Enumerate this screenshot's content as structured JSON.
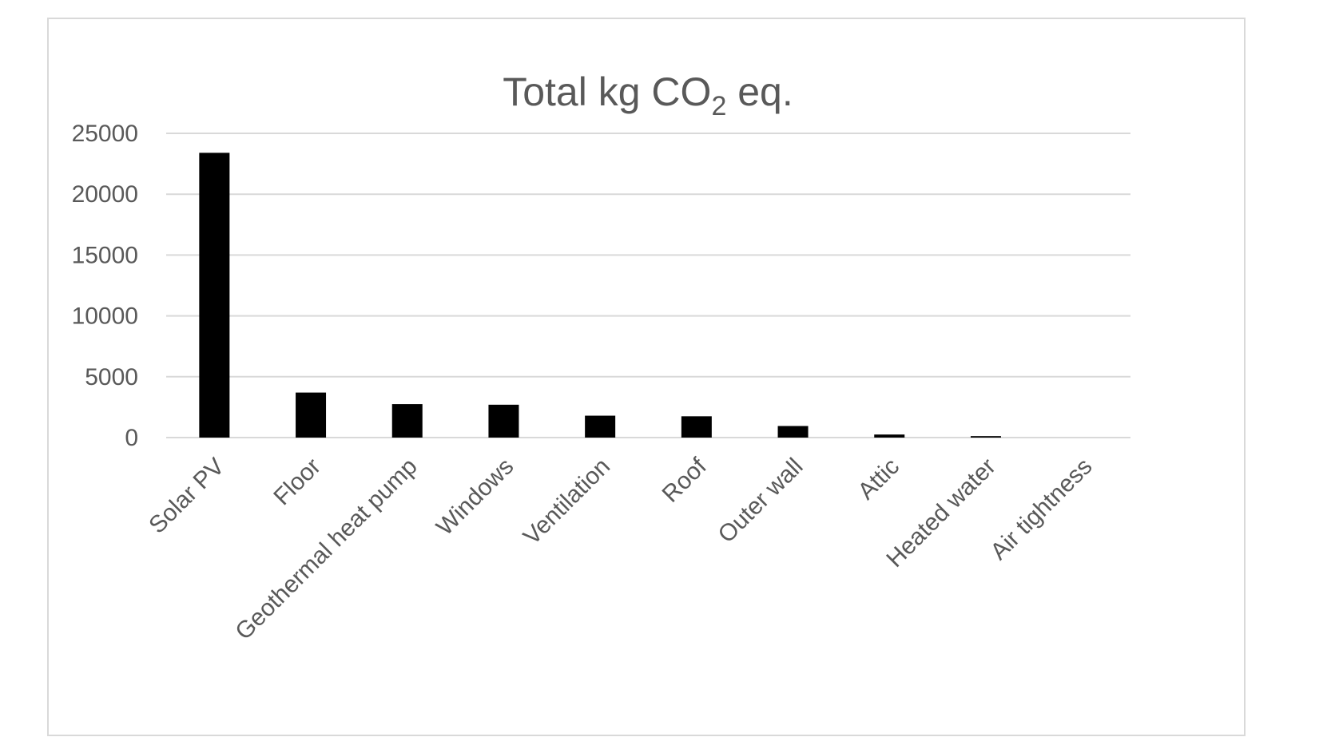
{
  "chart_data": {
    "type": "bar",
    "title_parts": [
      "Total kg CO",
      "2",
      " eq."
    ],
    "categories": [
      "Solar PV",
      "Floor",
      "Geothermal heat pump",
      "Windows",
      "Ventilation",
      "Roof",
      "Outer wall",
      "Attic",
      "Heated water",
      "Air tightness"
    ],
    "values": [
      23400,
      3700,
      2750,
      2700,
      1800,
      1750,
      950,
      250,
      120,
      0
    ],
    "ylim": [
      0,
      25000
    ],
    "yticks": [
      0,
      5000,
      10000,
      15000,
      20000,
      25000
    ],
    "ytick_labels": [
      "0",
      "5000",
      "10000",
      "15000",
      "20000",
      "25000"
    ],
    "grid": true,
    "legend": "none",
    "bar_color": "#000000"
  }
}
